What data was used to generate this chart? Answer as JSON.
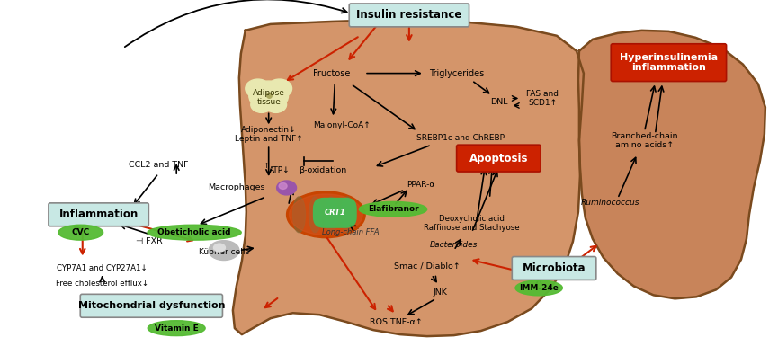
{
  "bg_color": "#ffffff",
  "liver_color": "#d4956a",
  "liver_edge_color": "#7a4a1e",
  "liver2_color": "#c8845a",
  "insulin_box_color": "#c8e8e4",
  "insulin_text": "Insulin resistance",
  "hyperinsulinemia_box_color": "#cc2200",
  "hyperinsulinemia_text": "Hyperinsulinemia\ninflammation",
  "apoptosis_box_color": "#cc2200",
  "apoptosis_text": "Apoptosis",
  "inflammation_box_color": "#c8e8e4",
  "inflammation_text": "Inflammation",
  "mitochondrial_box_color": "#c8e8e4",
  "mitochondrial_text": "Mitochondrial dysfunction",
  "microbiota_box_color": "#c8e8e4",
  "microbiota_text": "Microbiota",
  "adipose_color": "#e8e8b0",
  "mito_color": "#cc4400"
}
